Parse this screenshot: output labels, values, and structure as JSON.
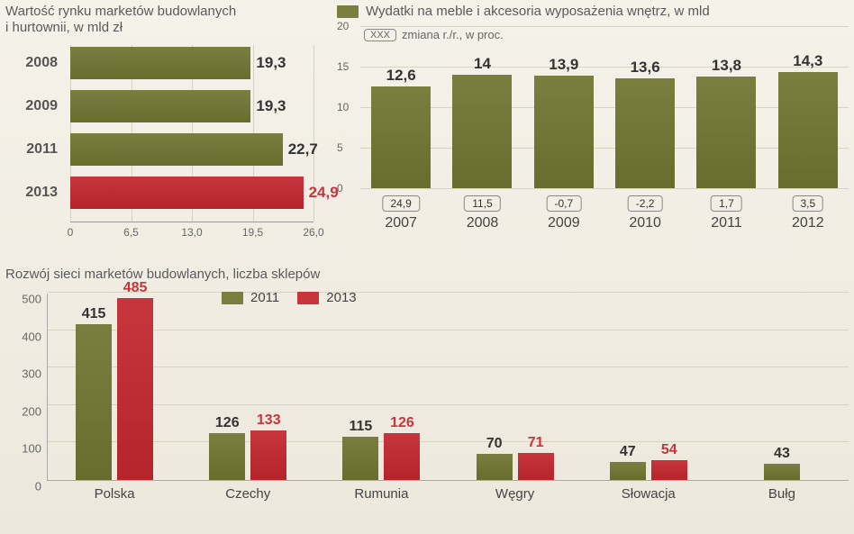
{
  "colors": {
    "olive": "#7a7e3f",
    "olive_dark": "#5f6430",
    "red": "#c7353d",
    "red_text": "#c7353d",
    "text": "#555555",
    "grid": "#d8d2c2",
    "bg_top": "#f5f2ea"
  },
  "hbar": {
    "title": "Wartość rynku marketów budowlanych\ni hurtownii, w mld zł",
    "xmax": 26.0,
    "xticks": [
      0,
      6.5,
      13.0,
      19.5,
      26.0
    ],
    "xtick_labels": [
      "0",
      "6,5",
      "13,0",
      "19,5",
      "26,0"
    ],
    "rows": [
      {
        "year": "2008",
        "value": 19.3,
        "label": "19,3",
        "color": "#7a7e3f",
        "text_color": "#333333"
      },
      {
        "year": "2009",
        "value": 19.3,
        "label": "19,3",
        "color": "#7a7e3f",
        "text_color": "#333333"
      },
      {
        "year": "2011",
        "value": 22.7,
        "label": "22,7",
        "color": "#7a7e3f",
        "text_color": "#333333"
      },
      {
        "year": "2013",
        "value": 24.9,
        "label": "24,9",
        "color": "#c7353d",
        "text_color": "#c7353d"
      }
    ]
  },
  "colchart": {
    "legend_label": "Wydatki na meble i akcesoria wyposażenia wnętrz, w mld",
    "legend_swatch": "#7a7e3f",
    "change_note_pill": "XXX",
    "change_note_text": "zmiana r./r., w proc.",
    "ymax": 20,
    "yticks": [
      0,
      5,
      10,
      15,
      20
    ],
    "bars": [
      {
        "year": "2007",
        "value": 12.6,
        "label": "12,6",
        "change": "24,9"
      },
      {
        "year": "2008",
        "value": 14.0,
        "label": "14",
        "change": "11,5"
      },
      {
        "year": "2009",
        "value": 13.9,
        "label": "13,9",
        "change": "-0,7"
      },
      {
        "year": "2010",
        "value": 13.6,
        "label": "13,6",
        "change": "-2,2"
      },
      {
        "year": "2011",
        "value": 13.8,
        "label": "13,8",
        "change": "1,7"
      },
      {
        "year": "2012",
        "value": 14.3,
        "label": "14,3",
        "change": "3,5"
      }
    ],
    "bar_color": "#7a7e3f"
  },
  "grouped": {
    "title": "Rozwój sieci marketów budowlanych, liczba sklepów",
    "ymax": 500,
    "yticks": [
      0,
      100,
      200,
      300,
      400,
      500
    ],
    "legend": [
      {
        "label": "2011",
        "color": "#7a7e3f"
      },
      {
        "label": "2013",
        "color": "#c7353d"
      }
    ],
    "countries": [
      {
        "name": "Polska",
        "a": 415,
        "b": 485
      },
      {
        "name": "Czechy",
        "a": 126,
        "b": 133
      },
      {
        "name": "Rumunia",
        "a": 115,
        "b": 126
      },
      {
        "name": "Węgry",
        "a": 70,
        "b": 71
      },
      {
        "name": "Słowacja",
        "a": 47,
        "b": 54
      },
      {
        "name": "Bułg",
        "a": 43,
        "b": null
      }
    ]
  }
}
